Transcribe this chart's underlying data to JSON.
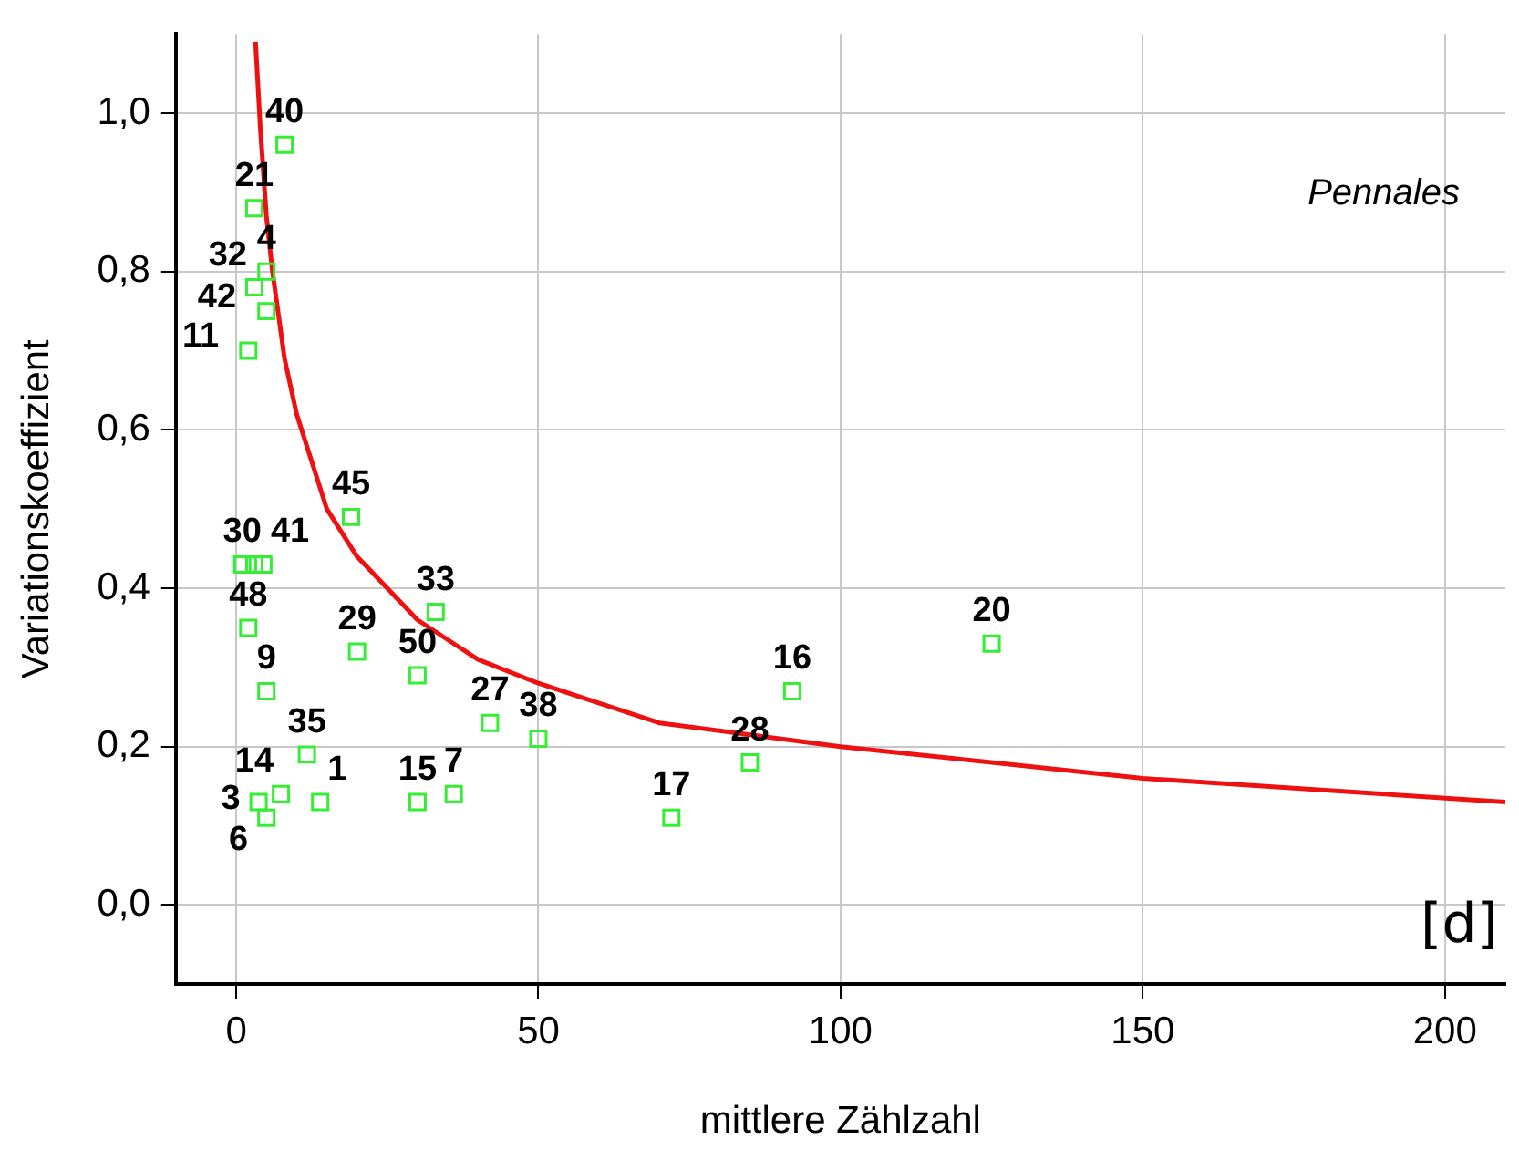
{
  "chart_data": {
    "type": "scatter",
    "xlabel": "mittlere Zählzahl",
    "ylabel": "Variationskoeffizient",
    "annotations": [
      "Pennales",
      "[d]",
      {
        "text": "40",
        "x": 8,
        "y": 0.96
      },
      {
        "text": "21",
        "x": 3,
        "y": 0.88
      },
      {
        "text": "4",
        "x": 5,
        "y": 0.8
      },
      {
        "text": "32",
        "x": 3,
        "y": 0.78
      },
      {
        "text": "42",
        "x": 5,
        "y": 0.75
      },
      {
        "text": "11",
        "x": 2,
        "y": 0.7
      },
      {
        "text": "30",
        "x": 1,
        "y": 0.43
      },
      {
        "text": "41",
        "x": 4.5,
        "y": 0.43
      },
      {
        "text": "48",
        "x": 2,
        "y": 0.35
      },
      {
        "text": "45",
        "x": 19,
        "y": 0.49
      },
      {
        "text": "9",
        "x": 5,
        "y": 0.27
      },
      {
        "text": "35",
        "x": 11.7,
        "y": 0.19
      },
      {
        "text": "14",
        "x": 7.4,
        "y": 0.14
      },
      {
        "text": "3",
        "x": 3.7,
        "y": 0.13
      },
      {
        "text": "6",
        "x": 5,
        "y": 0.11
      },
      {
        "text": "1",
        "x": 13.9,
        "y": 0.13
      },
      {
        "text": "29",
        "x": 20,
        "y": 0.32
      },
      {
        "text": "50",
        "x": 30,
        "y": 0.29
      },
      {
        "text": "33",
        "x": 33,
        "y": 0.37
      },
      {
        "text": "15",
        "x": 30,
        "y": 0.13
      },
      {
        "text": "7",
        "x": 36,
        "y": 0.14
      },
      {
        "text": "27",
        "x": 42,
        "y": 0.23
      },
      {
        "text": "38",
        "x": 50,
        "y": 0.21
      },
      {
        "text": "17",
        "x": 72,
        "y": 0.11
      },
      {
        "text": "28",
        "x": 85,
        "y": 0.18
      },
      {
        "text": "16",
        "x": 92,
        "y": 0.27
      },
      {
        "text": "20",
        "x": 125,
        "y": 0.33
      }
    ],
    "xlim": [
      -10,
      210
    ],
    "xticks": [
      0,
      50,
      100,
      150,
      200
    ],
    "ylim": [
      -0.1,
      1.1
    ],
    "yticks": [
      {
        "value": 0,
        "label": "0,0"
      },
      {
        "value": 0.2,
        "label": "0,2"
      },
      {
        "value": 0.4,
        "label": "0,4"
      },
      {
        "value": 0.6,
        "label": "0,6"
      },
      {
        "value": 0.8,
        "label": "0,8"
      },
      {
        "value": 1,
        "label": "1,0"
      }
    ],
    "grid": true,
    "legend": false,
    "marker": "square",
    "series": [
      {
        "color": "#33ee33",
        "x": [
          8,
          3,
          5,
          3,
          5,
          2,
          1,
          3,
          4.5,
          2,
          19,
          5,
          11.7,
          7.4,
          3.7,
          5,
          13.9,
          20,
          30,
          33,
          30,
          36,
          42,
          50,
          72,
          85,
          92,
          125
        ],
        "values": [
          0.96,
          0.88,
          0.8,
          0.78,
          0.75,
          0.7,
          0.43,
          0.43,
          0.43,
          0.35,
          0.49,
          0.27,
          0.19,
          0.14,
          0.13,
          0.11,
          0.13,
          0.32,
          0.29,
          0.37,
          0.13,
          0.14,
          0.23,
          0.21,
          0.11,
          0.18,
          0.27,
          0.33
        ]
      },
      {
        "type": "line",
        "color": "#ee1111",
        "marker": "none",
        "line_style": "solid",
        "x": [
          3.2,
          4,
          5,
          6,
          8,
          10,
          15,
          20,
          30,
          40,
          50,
          70,
          100,
          150,
          210
        ],
        "values": [
          1.09,
          0.98,
          0.87,
          0.8,
          0.69,
          0.62,
          0.5,
          0.44,
          0.36,
          0.31,
          0.28,
          0.23,
          0.2,
          0.16,
          0.13
        ]
      }
    ]
  }
}
